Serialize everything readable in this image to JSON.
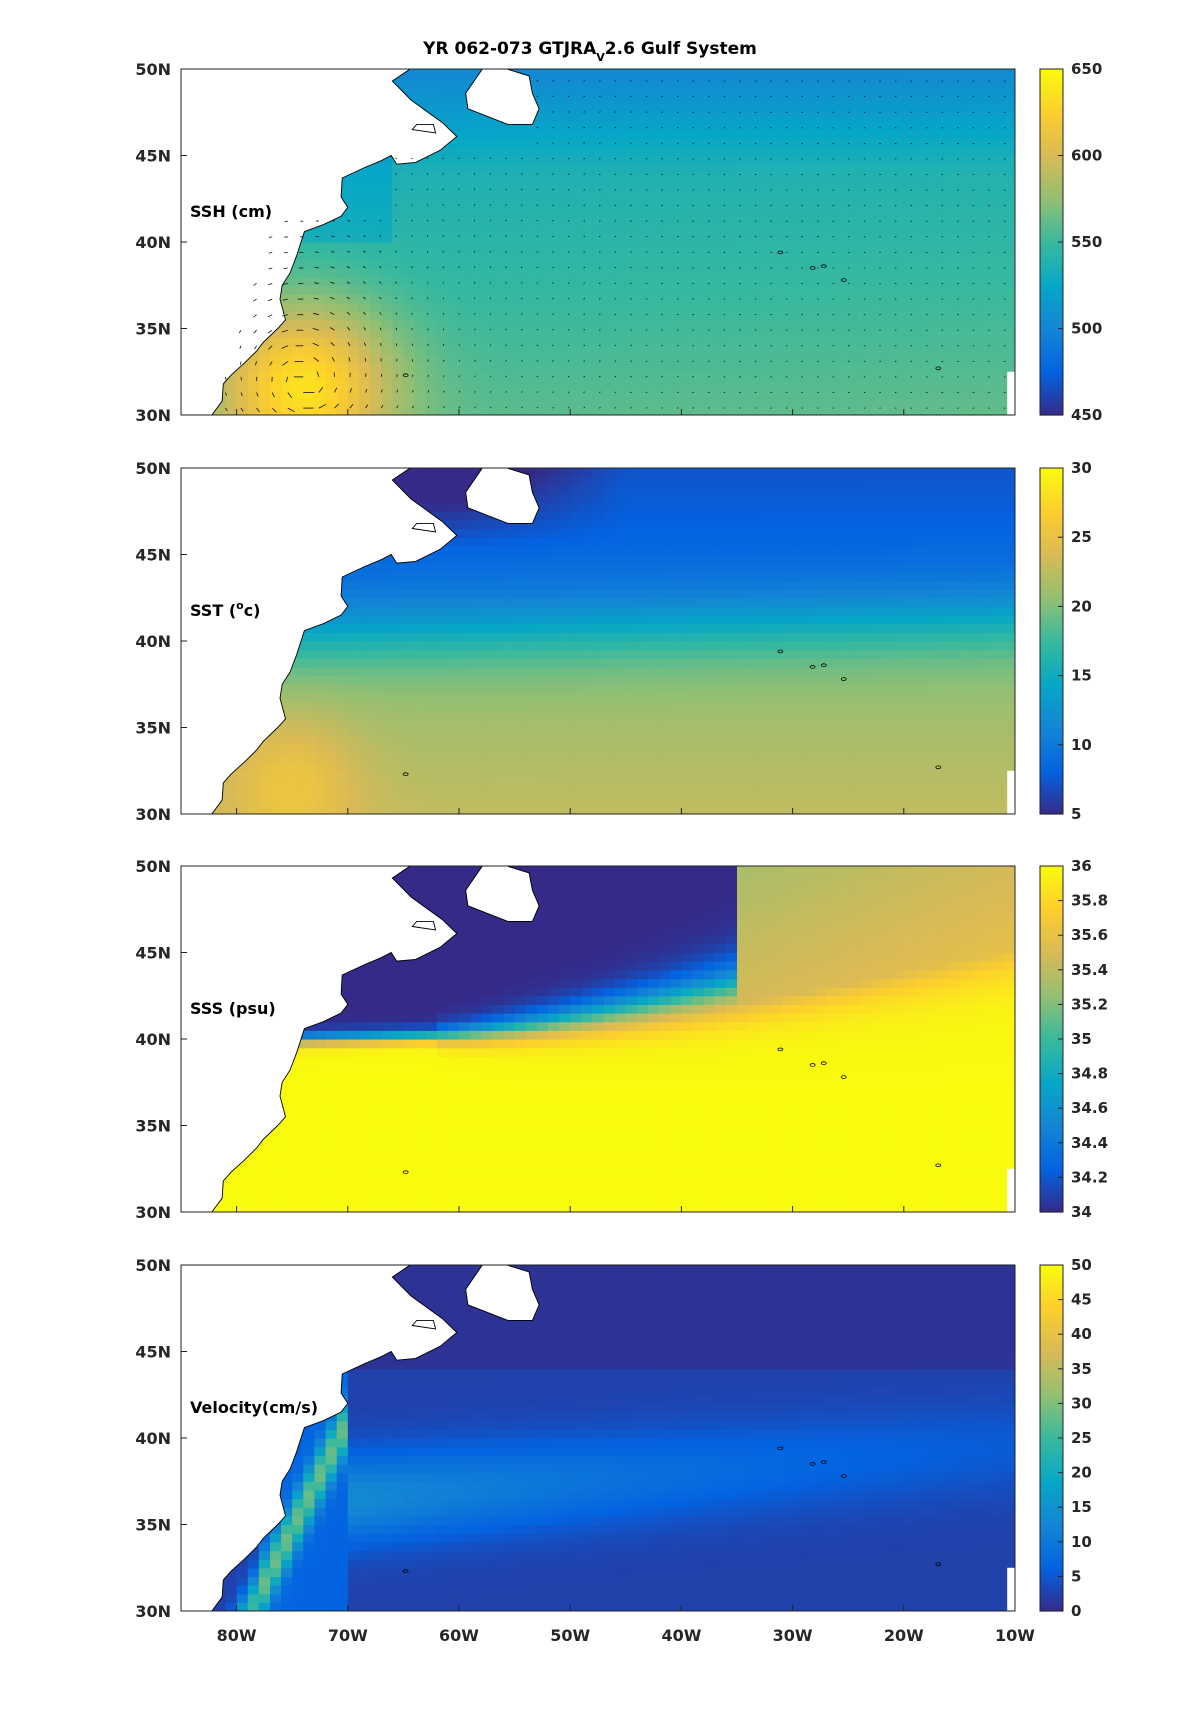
{
  "figure": {
    "title_main": "YR 062-073 GTJRA",
    "title_sub": "V",
    "title_rest": "2.6 Gulf System"
  },
  "colors": {
    "parula": [
      "#352a87",
      "#0363e1",
      "#1485d4",
      "#06a7c6",
      "#38b99e",
      "#92bf73",
      "#d9ba56",
      "#fcce2e",
      "#f9fb0e"
    ],
    "land": "#ffffff",
    "coast": "#000000"
  },
  "chart_data": [
    {
      "type": "heatmap",
      "field": "SSH",
      "label": "SSH (cm)",
      "xlim": [
        -85,
        -10
      ],
      "ylim": [
        30,
        50
      ],
      "xticks": [
        "80W",
        "70W",
        "60W",
        "50W",
        "40W",
        "30W",
        "20W",
        "10W"
      ],
      "yticks": [
        "30N",
        "35N",
        "40N",
        "45N",
        "50N"
      ],
      "clim": [
        450,
        650
      ],
      "colorbar_ticks": [
        "450",
        "500",
        "550",
        "600",
        "650"
      ],
      "vectors": true,
      "features": {
        "background": 555,
        "gyre_center": [
          -74,
          31.5
        ],
        "gyre_max": 622,
        "north_min": 518
      }
    },
    {
      "type": "heatmap",
      "field": "SST",
      "label": "SST (",
      "label_sup": "o",
      "label_end": "c)",
      "xlim": [
        -85,
        -10
      ],
      "ylim": [
        30,
        50
      ],
      "xticks": [
        "80W",
        "70W",
        "60W",
        "50W",
        "40W",
        "30W",
        "20W",
        "10W"
      ],
      "yticks": [
        "30N",
        "35N",
        "40N",
        "45N",
        "50N"
      ],
      "clim": [
        5,
        30
      ],
      "colorbar_ticks": [
        "5",
        "10",
        "15",
        "20",
        "25",
        "30"
      ],
      "vectors": false,
      "features": {
        "south": 22,
        "north": 8,
        "front_lat": 41.5,
        "warm_core": 25
      }
    },
    {
      "type": "heatmap",
      "field": "SSS",
      "label": "SSS (psu)",
      "xlim": [
        -85,
        -10
      ],
      "ylim": [
        30,
        50
      ],
      "xticks": [
        "80W",
        "70W",
        "60W",
        "50W",
        "40W",
        "30W",
        "20W",
        "10W"
      ],
      "yticks": [
        "30N",
        "35N",
        "40N",
        "45N",
        "50N"
      ],
      "clim": [
        34,
        36
      ],
      "colorbar_ticks": [
        "34",
        "34.2",
        "34.4",
        "34.6",
        "34.8",
        "35",
        "35.2",
        "35.4",
        "35.6",
        "35.8",
        "36"
      ],
      "vectors": false,
      "features": {
        "south": 36,
        "north": 34,
        "front_lat_west": 40.2,
        "front_lat_east": 47
      }
    },
    {
      "type": "heatmap",
      "field": "Velocity",
      "label": "Velocity(cm/s)",
      "xlim": [
        -85,
        -10
      ],
      "ylim": [
        30,
        50
      ],
      "xticks": [
        "80W",
        "70W",
        "60W",
        "50W",
        "40W",
        "30W",
        "20W",
        "10W"
      ],
      "yticks": [
        "30N",
        "35N",
        "40N",
        "45N",
        "50N"
      ],
      "clim": [
        0,
        50
      ],
      "colorbar_ticks": [
        "0",
        "5",
        "10",
        "15",
        "20",
        "25",
        "30",
        "35",
        "40",
        "45",
        "50"
      ],
      "vectors": false,
      "features": {
        "jet_max": 22,
        "background": 2
      }
    }
  ]
}
